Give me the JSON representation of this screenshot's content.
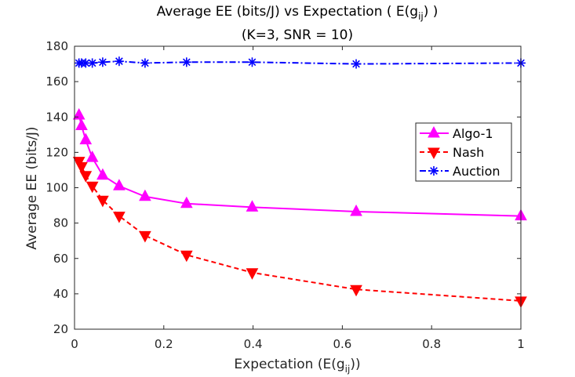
{
  "chart_data": {
    "type": "line",
    "title_line1_prefix": "Average EE (bits/J) vs Expectation ( E(g",
    "title_line1_sub": "ij",
    "title_line1_suffix": ") )",
    "title_line2": "(K=3, SNR = 10)",
    "xlabel_prefix": "Expectation (E(g",
    "xlabel_sub": "ij",
    "xlabel_suffix": "))",
    "ylabel": "Average EE (bits/J)",
    "xlim": [
      0,
      1
    ],
    "ylim": [
      20,
      180
    ],
    "xticks": [
      0,
      0.2,
      0.4,
      0.6,
      0.8,
      1
    ],
    "xtick_labels": [
      "0",
      "0.2",
      "0.4",
      "0.6",
      "0.8",
      "1"
    ],
    "yticks": [
      20,
      40,
      60,
      80,
      100,
      120,
      140,
      160,
      180
    ],
    "ytick_labels": [
      "20",
      "40",
      "60",
      "80",
      "100",
      "120",
      "140",
      "160",
      "180"
    ],
    "grid": false,
    "legend_position": "top-right",
    "x": [
      0.01,
      0.0158,
      0.0251,
      0.0398,
      0.0631,
      0.1,
      0.158,
      0.251,
      0.398,
      0.631,
      1
    ],
    "series": [
      {
        "name": "Algo-1",
        "color": "#ff00ff",
        "line": "solid",
        "marker": "triangle-up",
        "values": [
          141,
          135,
          127,
          117,
          107,
          101,
          95,
          91,
          89,
          86.5,
          84
        ]
      },
      {
        "name": "Nash",
        "color": "#ff0000",
        "line": "dashed",
        "marker": "triangle-down",
        "values": [
          115,
          112,
          107,
          101,
          93,
          84,
          73,
          62,
          52,
          42.5,
          36
        ]
      },
      {
        "name": "Auction",
        "color": "#0000ff",
        "line": "dashdot",
        "marker": "asterisk",
        "values": [
          170.5,
          170.5,
          170.5,
          170.5,
          171,
          171.5,
          170.5,
          171,
          171,
          170,
          170.5
        ]
      }
    ]
  }
}
